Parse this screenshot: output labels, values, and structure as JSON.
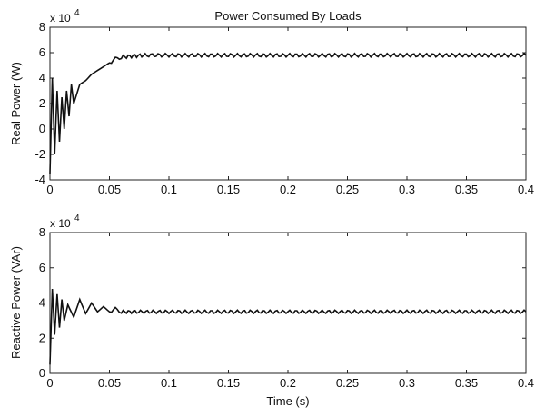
{
  "chart_data": [
    {
      "type": "line",
      "title": "Power Consumed By Loads",
      "xlabel": "",
      "ylabel": "Real Power (W)",
      "scale_label": "x 10",
      "scale_exponent": "4",
      "xlim": [
        0,
        0.4
      ],
      "ylim": [
        -4,
        8
      ],
      "xticks": [
        "0",
        "0.05",
        "0.1",
        "0.15",
        "0.2",
        "0.25",
        "0.3",
        "0.35",
        "0.4"
      ],
      "yticks": [
        "-4",
        "-2",
        "0",
        "2",
        "4",
        "6",
        "8"
      ],
      "grid": false,
      "series": [
        {
          "x": [
            0,
            0.002,
            0.004,
            0.006,
            0.008,
            0.01,
            0.012,
            0.014,
            0.016,
            0.018,
            0.02,
            0.025,
            0.03,
            0.035,
            0.04,
            0.045,
            0.05,
            0.055,
            0.06,
            0.07,
            0.08,
            0.1,
            0.15,
            0.2,
            0.25,
            0.3,
            0.35,
            0.4
          ],
          "y": [
            -3.5,
            4,
            -2,
            3,
            -1,
            2.5,
            0,
            3,
            1,
            3.5,
            2,
            3.5,
            3.8,
            4.3,
            4.6,
            4.9,
            5.2,
            5.5,
            5.65,
            5.75,
            5.8,
            5.8,
            5.8,
            5.8,
            5.8,
            5.8,
            5.8,
            5.8
          ]
        }
      ]
    },
    {
      "type": "line",
      "title": "",
      "xlabel": "Time (s)",
      "ylabel": "Reactive Power (VAr)",
      "scale_label": "x 10",
      "scale_exponent": "4",
      "xlim": [
        0,
        0.4
      ],
      "ylim": [
        0,
        8
      ],
      "xticks": [
        "0",
        "0.05",
        "0.1",
        "0.15",
        "0.2",
        "0.25",
        "0.3",
        "0.35",
        "0.4"
      ],
      "yticks": [
        "0",
        "2",
        "4",
        "6",
        "8"
      ],
      "grid": false,
      "series": [
        {
          "x": [
            0,
            0.002,
            0.004,
            0.006,
            0.008,
            0.01,
            0.012,
            0.015,
            0.02,
            0.025,
            0.03,
            0.035,
            0.04,
            0.045,
            0.05,
            0.055,
            0.06,
            0.07,
            0.1,
            0.15,
            0.2,
            0.25,
            0.3,
            0.35,
            0.4
          ],
          "y": [
            0.5,
            4.8,
            2.2,
            4.5,
            2.6,
            4.2,
            3,
            3.9,
            3.2,
            4.2,
            3.4,
            4,
            3.5,
            3.8,
            3.5,
            3.65,
            3.5,
            3.5,
            3.5,
            3.5,
            3.5,
            3.5,
            3.5,
            3.5,
            3.5
          ]
        }
      ]
    }
  ]
}
